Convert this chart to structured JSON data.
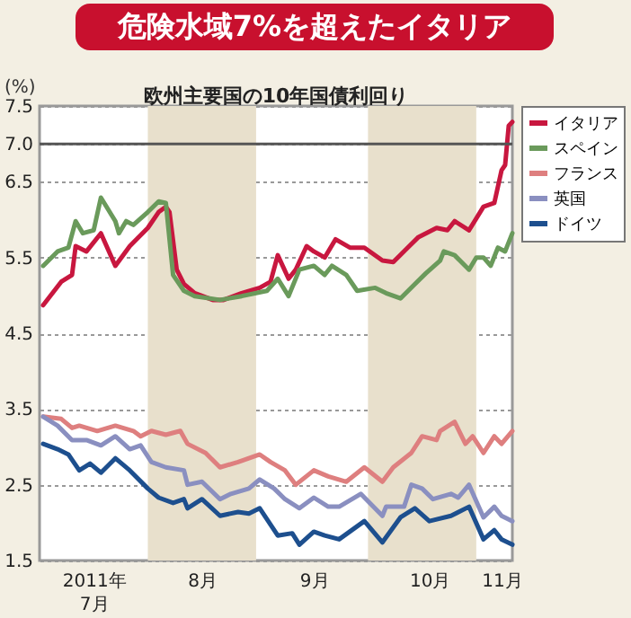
{
  "chart_data": {
    "type": "line",
    "title": "危険水域7%を超えたイタリア",
    "subtitle": "欧州主要国の10年国債利回り",
    "ylabel": "(%)",
    "xlim": [
      "2011-07-02",
      "2011-11-10"
    ],
    "ylim": [
      1.5,
      7.5
    ],
    "xticks": [
      {
        "value": "2011-07-17",
        "label": "2011年\n7月"
      },
      {
        "value": "2011-08-16",
        "label": "8月"
      },
      {
        "value": "2011-09-16",
        "label": "9月"
      },
      {
        "value": "2011-10-18",
        "label": "10月"
      },
      {
        "value": "2011-11-07",
        "label": "11月"
      }
    ],
    "yticks": [
      1.5,
      2.5,
      3.5,
      4.5,
      5.5,
      6.5,
      {
        "value": 7,
        "label": "7.0"
      },
      7.5
    ],
    "grid": "y",
    "legend": "right",
    "line_style": "solid",
    "marker": "none",
    "ref_lines": [
      {
        "axis": "y",
        "value": 7,
        "color": "#555555"
      }
    ],
    "bands": [
      {
        "axis": "x",
        "from": "2011-08-01",
        "to": "2011-08-31",
        "color": "#e8e0cc"
      },
      {
        "axis": "x",
        "from": "2011-10-01",
        "to": "2011-10-31",
        "color": "#e8e0cc"
      }
    ],
    "series": [
      {
        "name": "イタリア",
        "color": "#c8173f",
        "x": [
          "2011-07-03",
          "2011-07-08",
          "2011-07-11",
          "2011-07-12",
          "2011-07-15",
          "2011-07-19",
          "2011-07-23",
          "2011-07-27",
          "2011-08-01",
          "2011-08-04",
          "2011-08-06",
          "2011-08-07",
          "2011-08-09",
          "2011-08-11",
          "2011-08-14",
          "2011-08-19",
          "2011-08-22",
          "2011-08-27",
          "2011-09-01",
          "2011-09-04",
          "2011-09-06",
          "2011-09-09",
          "2011-09-11",
          "2011-09-14",
          "2011-09-16",
          "2011-09-19",
          "2011-09-22",
          "2011-09-26",
          "2011-09-30",
          "2011-10-05",
          "2011-10-08",
          "2011-10-12",
          "2011-10-15",
          "2011-10-20",
          "2011-10-23",
          "2011-10-25",
          "2011-10-29",
          "2011-11-02",
          "2011-11-05",
          "2011-11-07",
          "2011-11-08",
          "2011-11-09",
          "2011-11-10"
        ],
        "values": [
          4.87,
          5.18,
          5.27,
          5.65,
          5.58,
          5.82,
          5.39,
          5.65,
          5.89,
          6.1,
          6.17,
          6.1,
          5.34,
          5.15,
          5.03,
          4.94,
          4.94,
          5.03,
          5.1,
          5.18,
          5.53,
          5.22,
          5.34,
          5.65,
          5.58,
          5.5,
          5.74,
          5.63,
          5.63,
          5.46,
          5.44,
          5.63,
          5.77,
          5.89,
          5.86,
          5.98,
          5.86,
          6.17,
          6.22,
          6.65,
          6.72,
          7.24,
          7.29
        ]
      },
      {
        "name": "スペイン",
        "color": "#6a9a5b",
        "x": [
          "2011-07-03",
          "2011-07-07",
          "2011-07-10",
          "2011-07-12",
          "2011-07-14",
          "2011-07-17",
          "2011-07-19",
          "2011-07-23",
          "2011-07-24",
          "2011-07-26",
          "2011-07-28",
          "2011-08-01",
          "2011-08-04",
          "2011-08-06",
          "2011-08-08",
          "2011-08-11",
          "2011-08-14",
          "2011-08-21",
          "2011-08-27",
          "2011-09-03",
          "2011-09-06",
          "2011-09-09",
          "2011-09-12",
          "2011-09-16",
          "2011-09-19",
          "2011-09-21",
          "2011-09-25",
          "2011-09-28",
          "2011-10-03",
          "2011-10-06",
          "2011-10-10",
          "2011-10-14",
          "2011-10-17",
          "2011-10-21",
          "2011-10-22",
          "2011-10-25",
          "2011-10-29",
          "2011-10-31",
          "2011-11-02",
          "2011-11-04",
          "2011-11-06",
          "2011-11-08",
          "2011-11-10"
        ],
        "values": [
          5.39,
          5.58,
          5.63,
          5.98,
          5.82,
          5.86,
          6.29,
          5.98,
          5.82,
          5.98,
          5.93,
          6.1,
          6.24,
          6.22,
          5.27,
          5.06,
          4.99,
          4.94,
          4.99,
          5.06,
          5.22,
          4.99,
          5.34,
          5.39,
          5.27,
          5.39,
          5.27,
          5.06,
          5.1,
          5.03,
          4.96,
          5.15,
          5.29,
          5.46,
          5.58,
          5.53,
          5.34,
          5.5,
          5.5,
          5.39,
          5.63,
          5.58,
          5.82
        ]
      },
      {
        "name": "フランス",
        "color": "#de7f7f",
        "x": [
          "2011-07-03",
          "2011-07-08",
          "2011-07-11",
          "2011-07-13",
          "2011-07-18",
          "2011-07-23",
          "2011-07-28",
          "2011-07-30",
          "2011-08-02",
          "2011-08-06",
          "2011-08-10",
          "2011-08-12",
          "2011-08-17",
          "2011-08-21",
          "2011-08-26",
          "2011-08-29",
          "2011-09-01",
          "2011-09-04",
          "2011-09-08",
          "2011-09-11",
          "2011-09-16",
          "2011-09-20",
          "2011-09-25",
          "2011-09-30",
          "2011-10-05",
          "2011-10-08",
          "2011-10-13",
          "2011-10-16",
          "2011-10-20",
          "2011-10-21",
          "2011-10-25",
          "2011-10-28",
          "2011-10-30",
          "2011-11-02",
          "2011-11-05",
          "2011-11-07",
          "2011-11-10"
        ],
        "values": [
          3.4,
          3.37,
          3.25,
          3.28,
          3.21,
          3.28,
          3.21,
          3.14,
          3.21,
          3.16,
          3.21,
          3.04,
          2.92,
          2.73,
          2.8,
          2.85,
          2.9,
          2.8,
          2.69,
          2.5,
          2.69,
          2.61,
          2.54,
          2.73,
          2.54,
          2.73,
          2.92,
          3.14,
          3.09,
          3.21,
          3.33,
          3.04,
          3.14,
          2.92,
          3.14,
          3.04,
          3.21
        ]
      },
      {
        "name": "英国",
        "color": "#8a8fc0",
        "x": [
          "2011-07-03",
          "2011-07-07",
          "2011-07-11",
          "2011-07-15",
          "2011-07-19",
          "2011-07-23",
          "2011-07-27",
          "2011-07-30",
          "2011-08-02",
          "2011-08-06",
          "2011-08-11",
          "2011-08-12",
          "2011-08-16",
          "2011-08-21",
          "2011-08-24",
          "2011-08-29",
          "2011-09-01",
          "2011-09-05",
          "2011-09-08",
          "2011-09-12",
          "2011-09-16",
          "2011-09-20",
          "2011-09-23",
          "2011-09-29",
          "2011-10-05",
          "2011-10-06",
          "2011-10-11",
          "2011-10-13",
          "2011-10-16",
          "2011-10-19",
          "2011-10-24",
          "2011-10-26",
          "2011-10-29",
          "2011-11-02",
          "2011-11-05",
          "2011-11-07",
          "2011-11-10"
        ],
        "values": [
          3.4,
          3.28,
          3.09,
          3.09,
          3.02,
          3.14,
          2.97,
          3.02,
          2.8,
          2.73,
          2.69,
          2.5,
          2.54,
          2.31,
          2.38,
          2.45,
          2.57,
          2.45,
          2.31,
          2.19,
          2.33,
          2.21,
          2.21,
          2.38,
          2.09,
          2.21,
          2.21,
          2.5,
          2.45,
          2.31,
          2.38,
          2.33,
          2.5,
          2.07,
          2.21,
          2.09,
          2.02
        ]
      },
      {
        "name": "ドイツ",
        "color": "#1d4f8e",
        "x": [
          "2011-07-03",
          "2011-07-07",
          "2011-07-10",
          "2011-07-13",
          "2011-07-16",
          "2011-07-19",
          "2011-07-23",
          "2011-07-27",
          "2011-08-01",
          "2011-08-04",
          "2011-08-08",
          "2011-08-11",
          "2011-08-12",
          "2011-08-16",
          "2011-08-21",
          "2011-08-26",
          "2011-08-29",
          "2011-09-01",
          "2011-09-06",
          "2011-09-10",
          "2011-09-12",
          "2011-09-16",
          "2011-09-19",
          "2011-09-23",
          "2011-09-30",
          "2011-10-05",
          "2011-10-10",
          "2011-10-14",
          "2011-10-18",
          "2011-10-24",
          "2011-10-29",
          "2011-11-02",
          "2011-11-05",
          "2011-11-07",
          "2011-11-10"
        ],
        "values": [
          3.04,
          2.97,
          2.9,
          2.69,
          2.78,
          2.66,
          2.85,
          2.69,
          2.45,
          2.33,
          2.26,
          2.31,
          2.19,
          2.31,
          2.09,
          2.14,
          2.12,
          2.19,
          1.83,
          1.86,
          1.71,
          1.88,
          1.83,
          1.78,
          2.02,
          1.74,
          2.07,
          2.19,
          2.02,
          2.09,
          2.21,
          1.78,
          1.9,
          1.78,
          1.71
        ]
      }
    ]
  }
}
